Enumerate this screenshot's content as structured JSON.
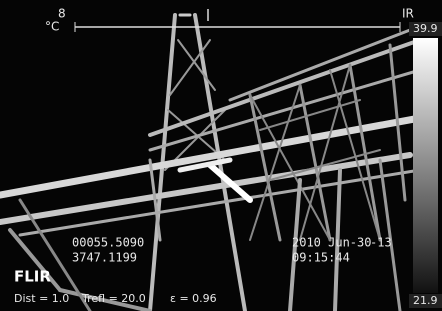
{
  "overlay": {
    "scale_value": "8",
    "unit": "°C",
    "mode": "IR",
    "max_temp": "39.9",
    "min_temp": "21.9",
    "coord_1": "00055.5090",
    "coord_2": "3747.1199",
    "date": "2010 Jun-30",
    "time": "09:15:44",
    "offset": "-13",
    "brand": "FLIR",
    "dist": "Dist = 1.0",
    "trefl": "Trefl = 20.0",
    "emissivity": "ε = 0.96"
  }
}
